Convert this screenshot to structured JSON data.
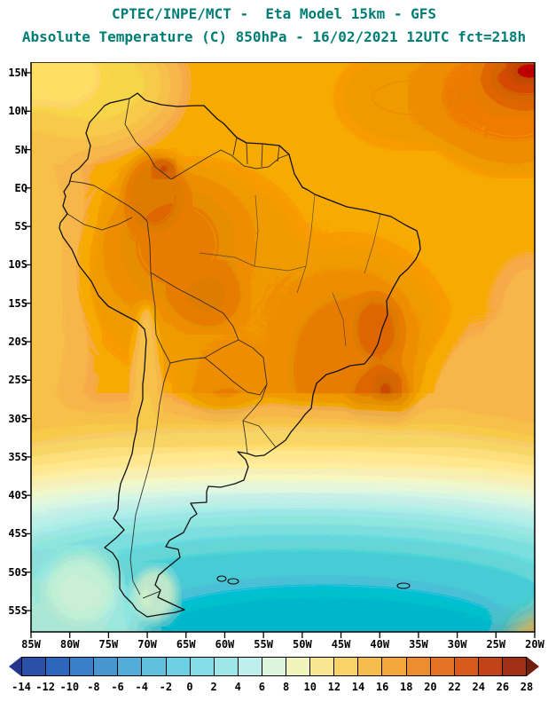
{
  "header": {
    "line1": "CPTEC/INPE/MCT -  Eta Model 15km - GFS",
    "line2": "Absolute Temperature (C) 850hPa - 16/02/2021 12UTC fct=218h",
    "title_color": "#007d74"
  },
  "map": {
    "lat_labels": [
      "15N",
      "10N",
      "5N",
      "EQ",
      "5S",
      "10S",
      "15S",
      "20S",
      "25S",
      "30S",
      "35S",
      "40S",
      "45S",
      "50S",
      "55S"
    ],
    "lon_labels": [
      "85W",
      "80W",
      "75W",
      "70W",
      "65W",
      "60W",
      "55W",
      "50W",
      "45W",
      "40W",
      "35W",
      "30W",
      "25W",
      "20W"
    ]
  },
  "colorbar": {
    "unit": "C",
    "tick_values": [
      "-14",
      "-12",
      "-10",
      "-8",
      "-6",
      "-4",
      "-2",
      "0",
      "2",
      "4",
      "6",
      "8",
      "10",
      "12",
      "14",
      "16",
      "18",
      "20",
      "22",
      "24",
      "26",
      "28"
    ],
    "segment_colors": [
      "#2B50A8",
      "#2E66BC",
      "#3A80C8",
      "#4796D0",
      "#54ACD8",
      "#60C0DE",
      "#6ED0E2",
      "#84DCE6",
      "#9FE6E8",
      "#BFEFEC",
      "#DDF5DC",
      "#F2F3BC",
      "#F9E690",
      "#F8D468",
      "#F6BC4E",
      "#F2A63C",
      "#EC8E2E",
      "#E47424",
      "#D85A1C",
      "#C04418",
      "#A03014"
    ],
    "arrow_left_color": "#24368C",
    "arrow_right_color": "#701F0E"
  }
}
